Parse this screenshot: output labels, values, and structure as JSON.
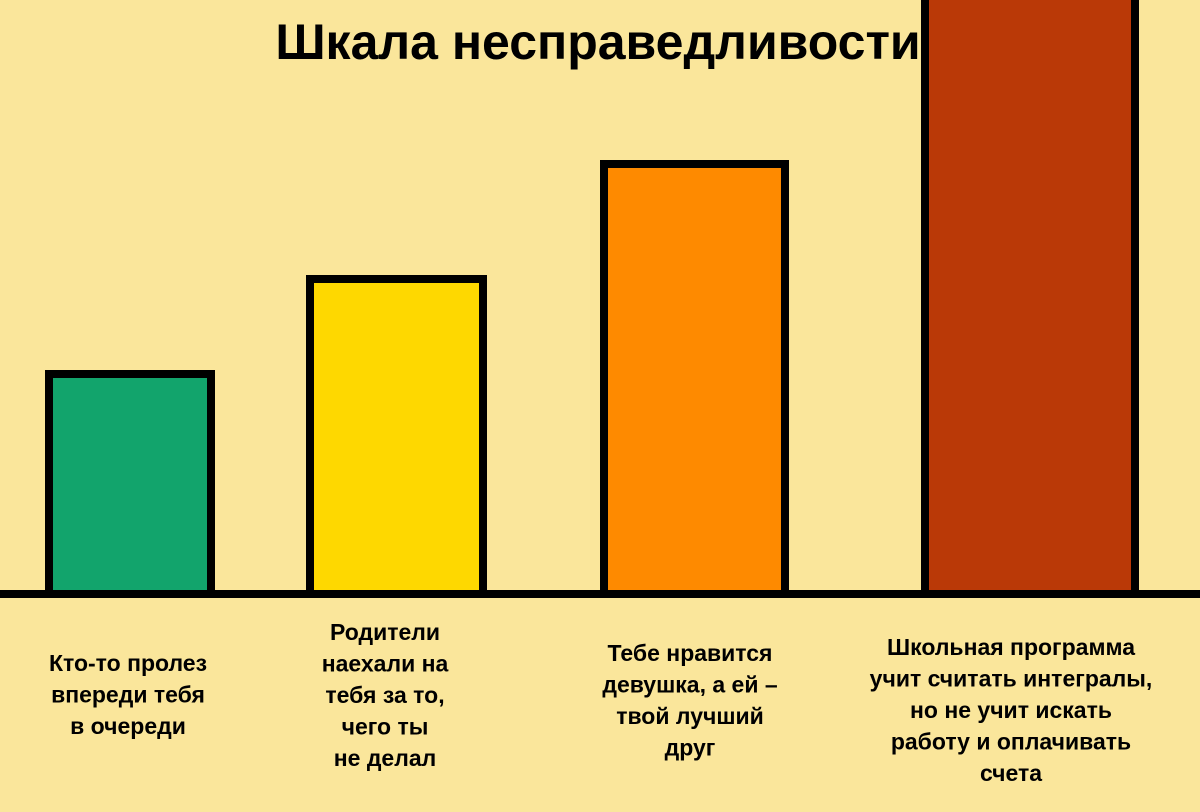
{
  "chart_data": {
    "type": "bar",
    "title": "Шкала несправедливости",
    "xlabel": "",
    "ylabel": "",
    "ylim": [
      0,
      600
    ],
    "grid": false,
    "categories": [
      [
        "Кто-то пролез",
        "впереди тебя",
        "в очереди"
      ],
      [
        "Родители",
        "наехали на",
        "тебя за то,",
        "чего ты",
        "не делал"
      ],
      [
        "Тебе нравится",
        "девушка, а ей –",
        "твой лучший",
        "друг"
      ],
      [
        "Школьная программа",
        "учит считать интегралы,",
        "но не учит искать",
        "работу и оплачивать",
        "счета"
      ]
    ],
    "values": [
      220,
      315,
      430,
      600
    ],
    "colors": [
      "#12a46c",
      "#fed800",
      "#fe8a00",
      "#ba3907"
    ]
  }
}
